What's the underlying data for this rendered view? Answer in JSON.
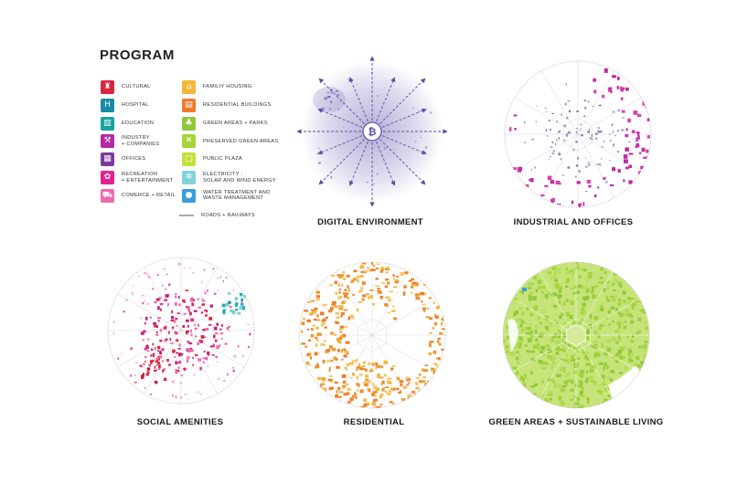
{
  "legend": {
    "title": "PROGRAM",
    "left_items": [
      {
        "label": "CULTURAL",
        "color": "#d9263f",
        "icon": "cultural-icon",
        "glyph": "♜"
      },
      {
        "label": "HOSPITAL",
        "color": "#1a8aa6",
        "icon": "hospital-icon",
        "glyph": "H"
      },
      {
        "label": "EDUCATION",
        "color": "#15a3a0",
        "icon": "education-icon",
        "glyph": "▥"
      },
      {
        "label": "INDUSTRY\n+ COMPANIES",
        "color": "#b02aa0",
        "icon": "industry-icon",
        "glyph": "⚒"
      },
      {
        "label": "OFFICES",
        "color": "#7c3a9c",
        "icon": "offices-icon",
        "glyph": "▦"
      },
      {
        "label": "RECREATION\n+ ENTERTAINMENT",
        "color": "#e2238f",
        "icon": "recreation-icon",
        "glyph": "✿"
      },
      {
        "label": "COMERCE + RETAIL",
        "color": "#f06ab0",
        "icon": "retail-icon",
        "glyph": "⛟"
      }
    ],
    "right_items": [
      {
        "label": "FAMILIY HOUSING",
        "color": "#f4b73a",
        "icon": "family-housing-icon",
        "glyph": "⌂"
      },
      {
        "label": "RESIDENTIAL BUILDINGS",
        "color": "#f07a2a",
        "icon": "residential-icon",
        "glyph": "▤"
      },
      {
        "label": "GREEN AREAS + PARKS",
        "color": "#8fc93a",
        "icon": "park-tree-icon",
        "glyph": "♣"
      },
      {
        "label": "PRESERVED GREEN AREAS",
        "color": "#a8d43a",
        "icon": "preserved-green-icon",
        "glyph": "✕"
      },
      {
        "label": "PUBLIC PLAZA",
        "color": "#c3df3c",
        "icon": "public-plaza-icon",
        "glyph": "▢"
      },
      {
        "label": "ELECTRICITY :\nSOLAR AND WIND ENERGY",
        "color": "#7fd3d8",
        "icon": "electricity-icon",
        "glyph": "✲"
      },
      {
        "label": "WATER TREATMENT AND\nWASTE MANAGEMENT",
        "color": "#3a9fd8",
        "icon": "water-drop-icon",
        "glyph": "●"
      }
    ],
    "roads_label": "ROADS + RAILWAYS",
    "roads_color": "#aaaaaa"
  },
  "panels": [
    {
      "title": "DIGITAL ENVIRONMENT",
      "theme": "digital",
      "color": "#5b4fa8",
      "icon": "bitcoin-icon",
      "center_glyph": "₿"
    },
    {
      "title": "INDUSTRIAL AND OFFICES",
      "theme": "industrial",
      "color": "#c22aa2"
    },
    {
      "title": "SOCIAL AMENITIES",
      "theme": "social",
      "color": "#e0339a"
    },
    {
      "title": "RESIDENTIAL",
      "theme": "residential",
      "color": "#f08a2c"
    },
    {
      "title": "GREEN AREAS + SUSTAINABLE LIVING",
      "theme": "green",
      "color": "#a6d43a"
    }
  ]
}
